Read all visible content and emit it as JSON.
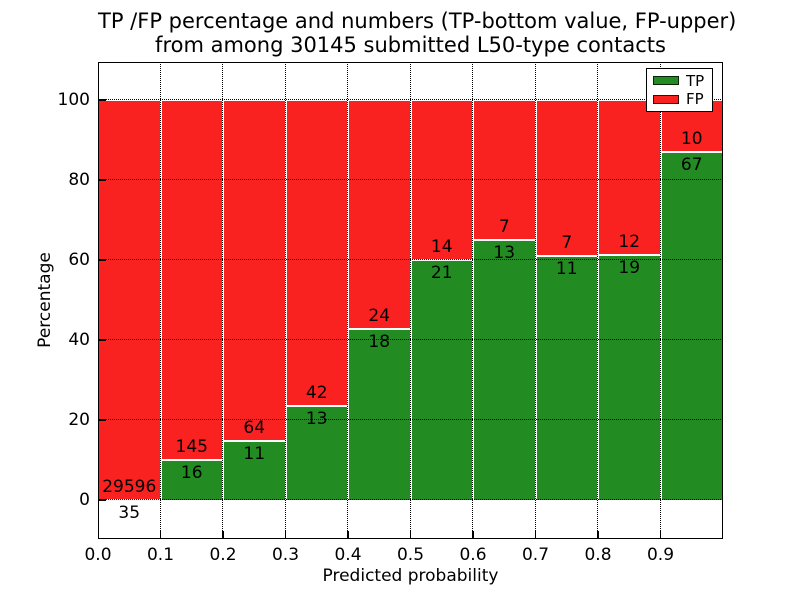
{
  "chart_data": {
    "type": "bar",
    "stacked": true,
    "title_line1": "TP /FP percentage and numbers (TP-bottom value, FP-upper)",
    "title_line2": "from among 30145 submitted L50-type contacts",
    "xlabel": "Predicted probability",
    "ylabel": "Percentage",
    "xlim": [
      0.0,
      1.0
    ],
    "ylim": [
      -10,
      110
    ],
    "grid": true,
    "grid_linestyle": "dotted",
    "x_tick_labels": [
      "0.0",
      "0.1",
      "0.2",
      "0.3",
      "0.4",
      "0.5",
      "0.6",
      "0.7",
      "0.8",
      "0.9"
    ],
    "y_tick_values": [
      0,
      20,
      40,
      60,
      80,
      100
    ],
    "y_tick_labels": [
      "0",
      "20",
      "40",
      "60",
      "80",
      "100"
    ],
    "bins": [
      "0.0-0.1",
      "0.1-0.2",
      "0.2-0.3",
      "0.3-0.4",
      "0.4-0.5",
      "0.5-0.6",
      "0.6-0.7",
      "0.7-0.8",
      "0.8-0.9",
      "0.9-1.0"
    ],
    "series": [
      {
        "name": "TP",
        "color": "#228b22",
        "counts": [
          35,
          16,
          11,
          13,
          18,
          21,
          13,
          11,
          19,
          67
        ]
      },
      {
        "name": "FP",
        "color": "#fa2121",
        "counts": [
          29596,
          145,
          64,
          42,
          24,
          14,
          7,
          7,
          12,
          10
        ]
      }
    ],
    "tp_percentages": [
      0.1,
      9.9,
      14.7,
      23.6,
      42.9,
      60.0,
      65.0,
      61.1,
      61.3,
      87.0
    ],
    "legend": {
      "position": "upper right",
      "entries": [
        {
          "label": "TP",
          "color": "#228b22"
        },
        {
          "label": "FP",
          "color": "#fa2121"
        }
      ]
    }
  }
}
